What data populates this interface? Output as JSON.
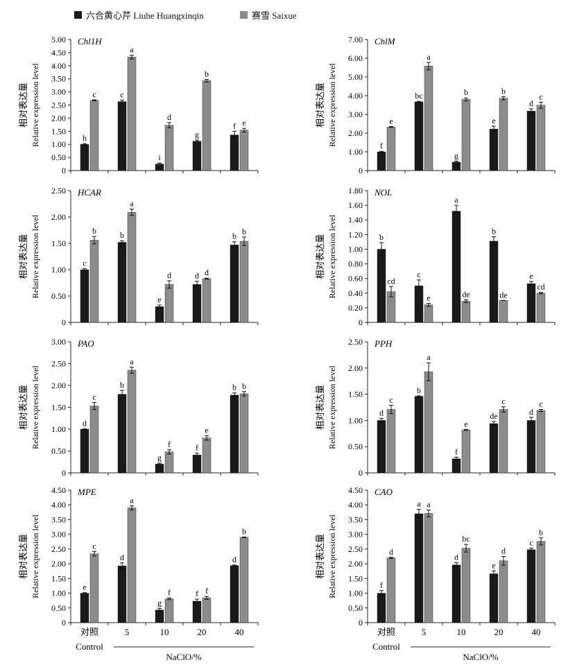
{
  "legend": [
    {
      "label": "六合黄心芹 Liuhe Huangxinqin",
      "color": "#1a1a1a"
    },
    {
      "label": "赛雪 Saixue",
      "color": "#8c8c8c"
    }
  ],
  "x_categories": [
    "对照",
    "5",
    "10",
    "20",
    "40"
  ],
  "x_control_label": "Control",
  "x_axis_label": "NaClO/%",
  "y_label_cn": "相对表达量",
  "y_label_en": "Relative expression level",
  "chart_data": [
    {
      "type": "bar",
      "title": "Chl1H",
      "ylim": [
        0,
        5
      ],
      "yticks": [
        "0",
        "0.50",
        "1.00",
        "1.50",
        "2.00",
        "2.50",
        "3.00",
        "3.50",
        "4.00",
        "4.50",
        "5.00"
      ],
      "categories": [
        "对照",
        "5",
        "10",
        "20",
        "40"
      ],
      "series": [
        {
          "name": "六合黄心芹 Liuhe Huangxinqin",
          "values": [
            1.0,
            2.63,
            0.25,
            1.12,
            1.36
          ],
          "errors": [
            0.03,
            0.06,
            0.04,
            0.04,
            0.14
          ],
          "labels": [
            "h",
            "c",
            "i",
            "g",
            "f"
          ]
        },
        {
          "name": "赛雪 Saixue",
          "values": [
            2.68,
            4.33,
            1.73,
            3.43,
            1.54
          ],
          "errors": [
            0.02,
            0.07,
            0.1,
            0.05,
            0.07
          ],
          "labels": [
            "c",
            "a",
            "d",
            "b",
            "e"
          ]
        }
      ]
    },
    {
      "type": "bar",
      "title": "ChlM",
      "ylim": [
        0,
        7
      ],
      "yticks": [
        "0",
        "1.00",
        "2.00",
        "3.00",
        "4.00",
        "5.00",
        "6.00",
        "7.00"
      ],
      "categories": [
        "对照",
        "5",
        "10",
        "20",
        "40"
      ],
      "series": [
        {
          "name": "六合黄心芹 Liuhe Huangxinqin",
          "values": [
            1.0,
            3.67,
            0.45,
            2.22,
            3.18
          ],
          "errors": [
            0.03,
            0.03,
            0.05,
            0.15,
            0.12
          ],
          "labels": [
            "f",
            "bc",
            "g",
            "e",
            "d"
          ]
        },
        {
          "name": "赛雪 Saixue",
          "values": [
            2.33,
            5.58,
            3.8,
            3.86,
            3.49
          ],
          "errors": [
            0.02,
            0.2,
            0.08,
            0.09,
            0.16
          ],
          "labels": [
            "e",
            "a",
            "b",
            "b",
            "c"
          ]
        }
      ]
    },
    {
      "type": "bar",
      "title": "HCAR",
      "ylim": [
        0,
        2.5
      ],
      "yticks": [
        "0",
        "0.50",
        "1.00",
        "1.50",
        "2.00",
        "2.50"
      ],
      "categories": [
        "对照",
        "5",
        "10",
        "20",
        "40"
      ],
      "series": [
        {
          "name": "六合黄心芹 Liuhe Huangxinqin",
          "values": [
            1.0,
            1.52,
            0.3,
            0.72,
            1.47
          ],
          "errors": [
            0.02,
            0.03,
            0.03,
            0.06,
            0.06
          ],
          "labels": [
            "c",
            "b",
            "e",
            "d",
            "b"
          ]
        },
        {
          "name": "赛雪 Saixue",
          "values": [
            1.56,
            2.09,
            0.72,
            0.83,
            1.54
          ],
          "errors": [
            0.07,
            0.06,
            0.07,
            0.01,
            0.08
          ],
          "labels": [
            "b",
            "a",
            "d",
            "d",
            "b"
          ]
        }
      ]
    },
    {
      "type": "bar",
      "title": "NOL",
      "ylim": [
        0,
        1.8
      ],
      "yticks": [
        "0",
        "0.20",
        "0.40",
        "0.60",
        "0.80",
        "1.00",
        "1.20",
        "1.40",
        "1.60",
        "1.80"
      ],
      "categories": [
        "对照",
        "5",
        "10",
        "20",
        "40"
      ],
      "series": [
        {
          "name": "六合黄心芹 Liuhe Huangxinqin",
          "values": [
            1.0,
            0.5,
            1.52,
            1.11,
            0.53
          ],
          "errors": [
            0.09,
            0.08,
            0.08,
            0.06,
            0.03
          ],
          "labels": [
            "b",
            "c",
            "a",
            "b",
            "e"
          ]
        },
        {
          "name": "赛雪 Saixue",
          "values": [
            0.42,
            0.24,
            0.29,
            0.3,
            0.4
          ],
          "errors": [
            0.07,
            0.02,
            0.02,
            0.0,
            0.01
          ],
          "labels": [
            "cd",
            "e",
            "de",
            "de",
            "cd"
          ]
        }
      ]
    },
    {
      "type": "bar",
      "title": "PAO",
      "ylim": [
        0,
        3
      ],
      "yticks": [
        "0",
        "0.50",
        "1.00",
        "1.50",
        "2.00",
        "2.50",
        "3.00"
      ],
      "categories": [
        "对照",
        "5",
        "10",
        "20",
        "40"
      ],
      "series": [
        {
          "name": "六合黄心芹 Liuhe Huangxinqin",
          "values": [
            1.0,
            1.8,
            0.2,
            0.41,
            1.78
          ],
          "errors": [
            0.01,
            0.09,
            0.02,
            0.04,
            0.05
          ],
          "labels": [
            "d",
            "b",
            "g",
            "f",
            "b"
          ]
        },
        {
          "name": "赛雪 Saixue",
          "values": [
            1.53,
            2.35,
            0.48,
            0.8,
            1.81
          ],
          "errors": [
            0.08,
            0.07,
            0.05,
            0.05,
            0.05
          ],
          "labels": [
            "c",
            "a",
            "f",
            "e",
            "b"
          ]
        }
      ]
    },
    {
      "type": "bar",
      "title": "PPH",
      "ylim": [
        0,
        2.5
      ],
      "yticks": [
        "0",
        "0.50",
        "1.00",
        "1.50",
        "2.00",
        "2.50"
      ],
      "categories": [
        "对照",
        "5",
        "10",
        "20",
        "40"
      ],
      "series": [
        {
          "name": "六合黄心芹 Liuhe Huangxinqin",
          "values": [
            1.0,
            1.46,
            0.27,
            0.94,
            1.0
          ],
          "errors": [
            0.04,
            0.01,
            0.03,
            0.04,
            0.06
          ],
          "labels": [
            "d",
            "b",
            "f",
            "de",
            "d"
          ]
        },
        {
          "name": "赛雪 Saixue",
          "values": [
            1.21,
            1.93,
            0.82,
            1.21,
            1.19
          ],
          "errors": [
            0.08,
            0.17,
            0.01,
            0.05,
            0.02
          ],
          "labels": [
            "c",
            "a",
            "e",
            "c",
            "c"
          ]
        }
      ]
    },
    {
      "type": "bar",
      "title": "MPE",
      "ylim": [
        0,
        4.5
      ],
      "yticks": [
        "0",
        "0.50",
        "1.00",
        "1.50",
        "2.00",
        "2.50",
        "3.00",
        "3.50",
        "4.00",
        "4.50"
      ],
      "categories": [
        "对照",
        "5",
        "10",
        "20",
        "40"
      ],
      "series": [
        {
          "name": "六合黄心芹 Liuhe Huangxinqin",
          "values": [
            1.0,
            1.93,
            0.43,
            0.73,
            1.94
          ],
          "errors": [
            0.02,
            0.1,
            0.05,
            0.07,
            0.02
          ],
          "labels": [
            "e",
            "d",
            "g",
            "f",
            "d"
          ]
        },
        {
          "name": "赛雪 Saixue",
          "values": [
            2.34,
            3.9,
            0.81,
            0.84,
            2.9
          ],
          "errors": [
            0.08,
            0.07,
            0.03,
            0.05,
            0.01
          ],
          "labels": [
            "c",
            "a",
            "f",
            "f",
            "b"
          ]
        }
      ]
    },
    {
      "type": "bar",
      "title": "CAO",
      "ylim": [
        0,
        4.5
      ],
      "yticks": [
        "0",
        "0.50",
        "1.00",
        "1.50",
        "2.00",
        "2.50",
        "3.00",
        "3.50",
        "4.00",
        "4.50"
      ],
      "categories": [
        "对照",
        "5",
        "10",
        "20",
        "40"
      ],
      "series": [
        {
          "name": "六合黄心芹 Liuhe Huangxinqin",
          "values": [
            1.0,
            3.7,
            1.96,
            1.66,
            2.48
          ],
          "errors": [
            0.09,
            0.15,
            0.08,
            0.1,
            0.05
          ],
          "labels": [
            "f",
            "a",
            "d",
            "e",
            "c"
          ]
        },
        {
          "name": "赛雪 Saixue",
          "values": [
            2.2,
            3.71,
            2.53,
            2.1,
            2.76
          ],
          "errors": [
            0.02,
            0.12,
            0.13,
            0.15,
            0.12
          ],
          "labels": [
            "d",
            "a",
            "bc",
            "d",
            "b"
          ]
        }
      ]
    }
  ]
}
